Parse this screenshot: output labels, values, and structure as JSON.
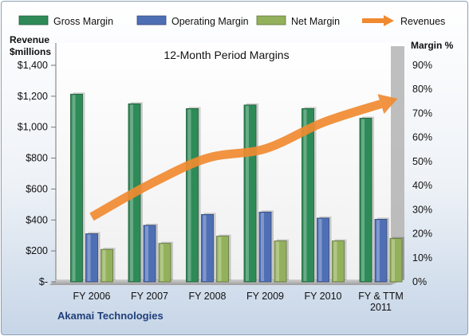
{
  "chart_data": {
    "type": "bar",
    "title": "12-Month Period Margins",
    "categories": [
      [
        "FY 2006"
      ],
      [
        "FY 2007"
      ],
      [
        "FY 2008"
      ],
      [
        "FY 2009"
      ],
      [
        "FY 2010"
      ],
      [
        "FY & TTM",
        "2011"
      ]
    ],
    "series": [
      {
        "name": "Gross Margin",
        "axis": "right",
        "color": "#2e8b57",
        "values": [
          78,
          74,
          72,
          73.5,
          72,
          68
        ]
      },
      {
        "name": "Operating Margin",
        "axis": "right",
        "color": "#4f6fb5",
        "values": [
          20,
          23.5,
          28,
          29,
          26.5,
          26
        ]
      },
      {
        "name": "Net Margin",
        "axis": "right",
        "color": "#93b15a",
        "values": [
          13.5,
          16,
          19,
          17,
          17,
          18
        ]
      },
      {
        "name": "Revenues",
        "axis": "left",
        "type": "line",
        "color": "#f08a30",
        "values": [
          420,
          630,
          800,
          860,
          1030,
          1150
        ]
      }
    ],
    "left_axis": {
      "label": [
        "Revenue",
        "$millions"
      ],
      "range": [
        0,
        1400
      ],
      "ticks": [
        "$-",
        "$200",
        "$400",
        "$600",
        "$800",
        "$1,000",
        "$1,200",
        "$1,400"
      ]
    },
    "right_axis": {
      "label": "Margin %",
      "range": [
        0,
        90
      ],
      "ticks": [
        "0%",
        "10%",
        "20%",
        "30%",
        "40%",
        "50%",
        "60%",
        "70%",
        "80%",
        "90%"
      ]
    },
    "grid": false,
    "legend_position": "top",
    "footer": "Akamai Technologies"
  }
}
